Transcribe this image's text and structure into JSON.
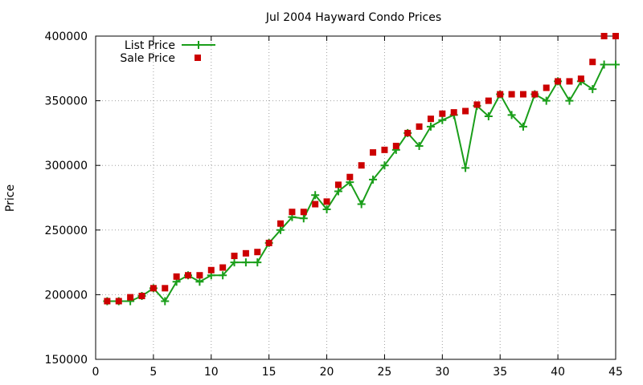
{
  "chart_data": {
    "type": "line",
    "title": "Jul 2004 Hayward Condo Prices",
    "xlabel": "",
    "ylabel": "Price",
    "xlim": [
      0,
      45
    ],
    "ylim": [
      150000,
      400000
    ],
    "xticks": [
      0,
      5,
      10,
      15,
      20,
      25,
      30,
      35,
      40,
      45
    ],
    "yticks": [
      150000,
      200000,
      250000,
      300000,
      350000,
      400000
    ],
    "grid": true,
    "legend_position": "top-left",
    "x": [
      1,
      2,
      3,
      4,
      5,
      6,
      7,
      8,
      9,
      10,
      11,
      12,
      13,
      14,
      15,
      16,
      17,
      18,
      19,
      20,
      21,
      22,
      23,
      24,
      25,
      26,
      27,
      28,
      29,
      30,
      31,
      32,
      33,
      34,
      35,
      36,
      37,
      38,
      39,
      40,
      41,
      42,
      43,
      44,
      45
    ],
    "series": [
      {
        "name": "List Price",
        "style": "linespoints",
        "color": "#1a9e1a",
        "values": [
          195000,
          195000,
          195000,
          199000,
          205000,
          195000,
          210000,
          215000,
          210000,
          215000,
          215000,
          225000,
          225000,
          225000,
          240000,
          250000,
          260000,
          259000,
          277000,
          266000,
          280000,
          287000,
          270000,
          289000,
          300000,
          312000,
          325000,
          315000,
          330000,
          335000,
          339000,
          298000,
          346000,
          338000,
          355000,
          339000,
          330000,
          355000,
          350000,
          365000,
          350000,
          365000,
          359000,
          378000,
          378000
        ]
      },
      {
        "name": "Sale Price",
        "style": "points",
        "color": "#cc0000",
        "values": [
          195000,
          195000,
          198000,
          199000,
          205000,
          205000,
          214000,
          215000,
          215000,
          219000,
          221000,
          230000,
          232000,
          233000,
          240000,
          255000,
          264000,
          264000,
          270000,
          272000,
          285000,
          291000,
          300000,
          310000,
          312000,
          315000,
          325000,
          330000,
          336000,
          340000,
          341000,
          342000,
          347000,
          350000,
          355000,
          355000,
          355000,
          355000,
          360000,
          365000,
          365000,
          367000,
          380000,
          400000,
          400000
        ]
      }
    ]
  }
}
